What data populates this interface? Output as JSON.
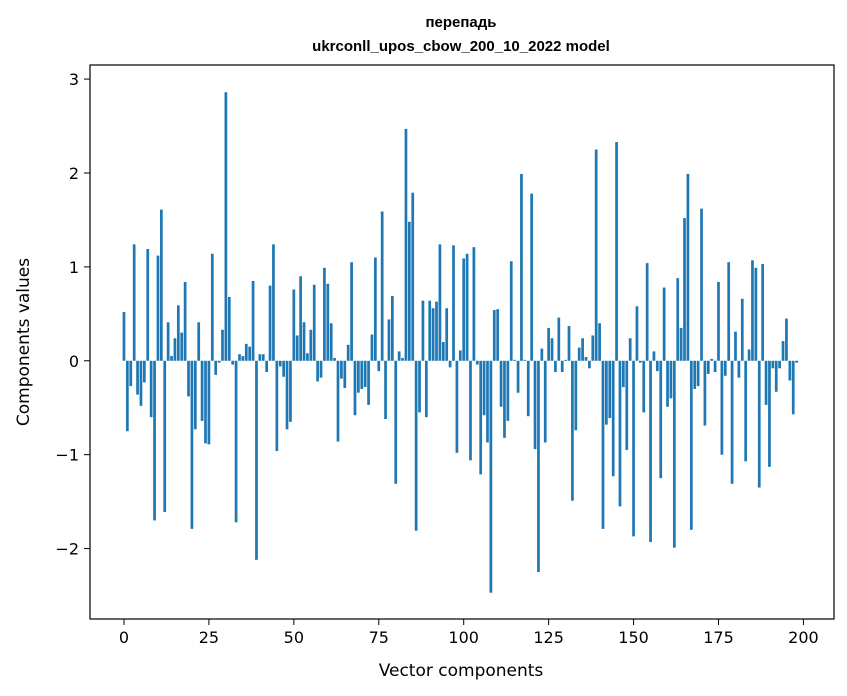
{
  "chart_data": {
    "type": "bar",
    "title_line1": "перепадь",
    "title_line2": "ukrconll_upos_cbow_200_10_2022 model",
    "xlabel": "Vector components",
    "ylabel": "Components values",
    "xlim": [
      -10,
      209
    ],
    "ylim": [
      -2.75,
      3.15
    ],
    "x_ticks": [
      0,
      25,
      50,
      75,
      100,
      125,
      150,
      175,
      200
    ],
    "y_ticks": [
      -2,
      -1,
      0,
      1,
      2,
      3
    ],
    "y_tick_labels": [
      "−2",
      "−1",
      "0",
      "1",
      "2",
      "3"
    ],
    "grid": false,
    "bar_color": "#1f77b4",
    "values": [
      0.52,
      -0.75,
      -0.27,
      1.24,
      -0.36,
      -0.48,
      -0.23,
      1.19,
      -0.6,
      -1.7,
      1.12,
      1.61,
      -1.61,
      0.41,
      0.05,
      0.24,
      0.59,
      0.3,
      0.84,
      -0.38,
      -1.79,
      -0.73,
      0.41,
      -0.64,
      -0.88,
      -0.89,
      1.14,
      -0.15,
      -0.02,
      0.33,
      2.86,
      0.68,
      -0.04,
      -1.72,
      0.07,
      0.05,
      0.18,
      0.15,
      0.85,
      -2.12,
      0.07,
      0.07,
      -0.12,
      0.8,
      1.24,
      -0.96,
      -0.06,
      -0.17,
      -0.73,
      -0.65,
      0.76,
      0.27,
      0.9,
      0.41,
      0.08,
      0.33,
      0.81,
      -0.22,
      -0.18,
      0.99,
      0.82,
      0.4,
      0.03,
      -0.86,
      -0.19,
      -0.29,
      0.17,
      1.05,
      -0.58,
      -0.34,
      -0.3,
      -0.28,
      -0.47,
      0.28,
      1.1,
      -0.11,
      1.59,
      -0.62,
      0.44,
      0.69,
      -1.31,
      0.1,
      0.03,
      2.47,
      1.48,
      1.79,
      -1.81,
      -0.55,
      0.64,
      -0.6,
      0.64,
      0.56,
      0.63,
      1.24,
      0.2,
      0.56,
      -0.07,
      1.23,
      -0.98,
      0.11,
      1.09,
      1.14,
      -1.06,
      1.21,
      -0.04,
      -1.21,
      -0.58,
      -0.87,
      -2.47,
      0.54,
      0.55,
      -0.49,
      -0.82,
      -0.64,
      1.06,
      0.01,
      -0.34,
      1.99,
      0.01,
      -0.59,
      1.78,
      -0.94,
      -2.25,
      0.13,
      -0.87,
      0.35,
      0.24,
      -0.12,
      0.46,
      -0.12,
      0.01,
      0.37,
      -1.49,
      -0.74,
      0.14,
      0.24,
      0.04,
      -0.08,
      0.27,
      2.25,
      0.4,
      -1.79,
      -0.68,
      -0.61,
      -1.23,
      2.33,
      -1.55,
      -0.28,
      -0.95,
      0.24,
      -1.87,
      0.58,
      -0.02,
      -0.55,
      1.04,
      -1.93,
      0.1,
      -0.11,
      -1.25,
      0.78,
      -0.49,
      -0.4,
      -1.99,
      0.88,
      0.35,
      1.52,
      1.99,
      -1.8,
      -0.3,
      -0.27,
      1.62,
      -0.69,
      -0.14,
      0.02,
      -0.12,
      0.84,
      -1.0,
      -0.16,
      1.05,
      -1.31,
      0.31,
      -0.18,
      0.66,
      -1.07,
      0.12,
      1.07,
      0.99,
      -1.35,
      1.03,
      -0.47,
      -1.13,
      -0.08,
      -0.33,
      -0.08,
      0.21,
      0.45,
      -0.21,
      -0.57,
      -0.02
    ]
  }
}
